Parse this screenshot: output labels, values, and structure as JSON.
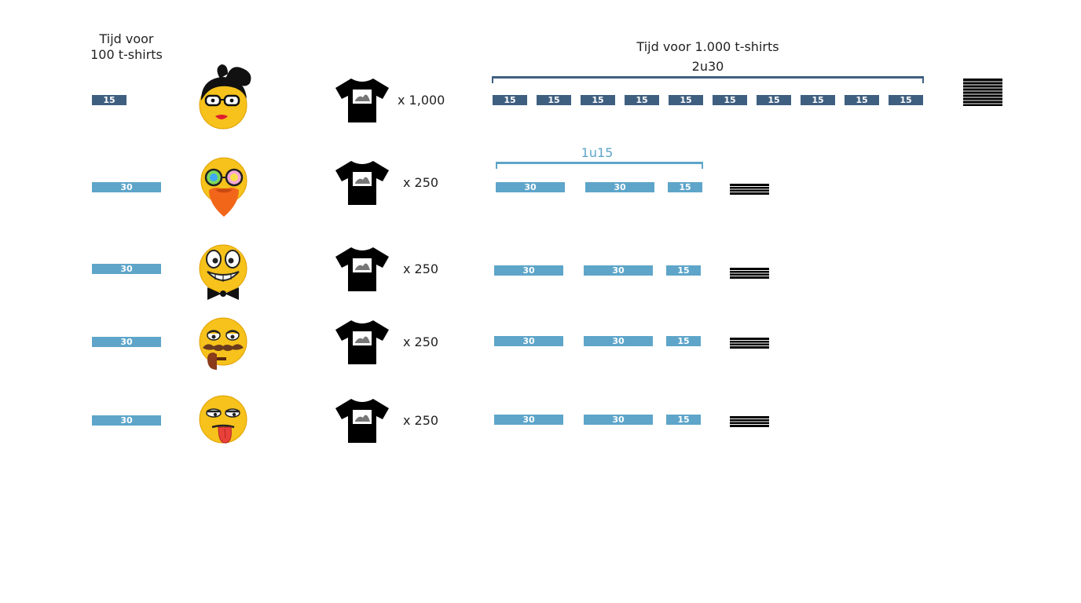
{
  "header_left": {
    "line1": "Tijd voor",
    "line2": "100 t-shirts"
  },
  "header_right": {
    "title": "Tijd voor 1.000 t-shirts",
    "total": "2u30"
  },
  "bracket_light_label": "1u15",
  "colors": {
    "dark": "#3f5f80",
    "light": "#5ea5c9"
  },
  "rows": [
    {
      "face_icon": "woman-glasses-bow-emoji",
      "time_label": "15",
      "quantity": "x 1,000",
      "segments": [
        "15",
        "15",
        "15",
        "15",
        "15",
        "15",
        "15",
        "15",
        "15",
        "15"
      ]
    },
    {
      "face_icon": "rainbow-glasses-beard-emoji",
      "time_label": "30",
      "quantity": "x 250",
      "segments": [
        "30",
        "30",
        "15"
      ]
    },
    {
      "face_icon": "grinning-bowtie-emoji",
      "time_label": "30",
      "quantity": "x 250",
      "segments": [
        "30",
        "30",
        "15"
      ]
    },
    {
      "face_icon": "mustache-pipe-emoji",
      "time_label": "30",
      "quantity": "x 250",
      "segments": [
        "30",
        "30",
        "15"
      ]
    },
    {
      "face_icon": "tongue-out-emoji",
      "time_label": "30",
      "quantity": "x 250",
      "segments": [
        "30",
        "30",
        "15"
      ]
    }
  ]
}
